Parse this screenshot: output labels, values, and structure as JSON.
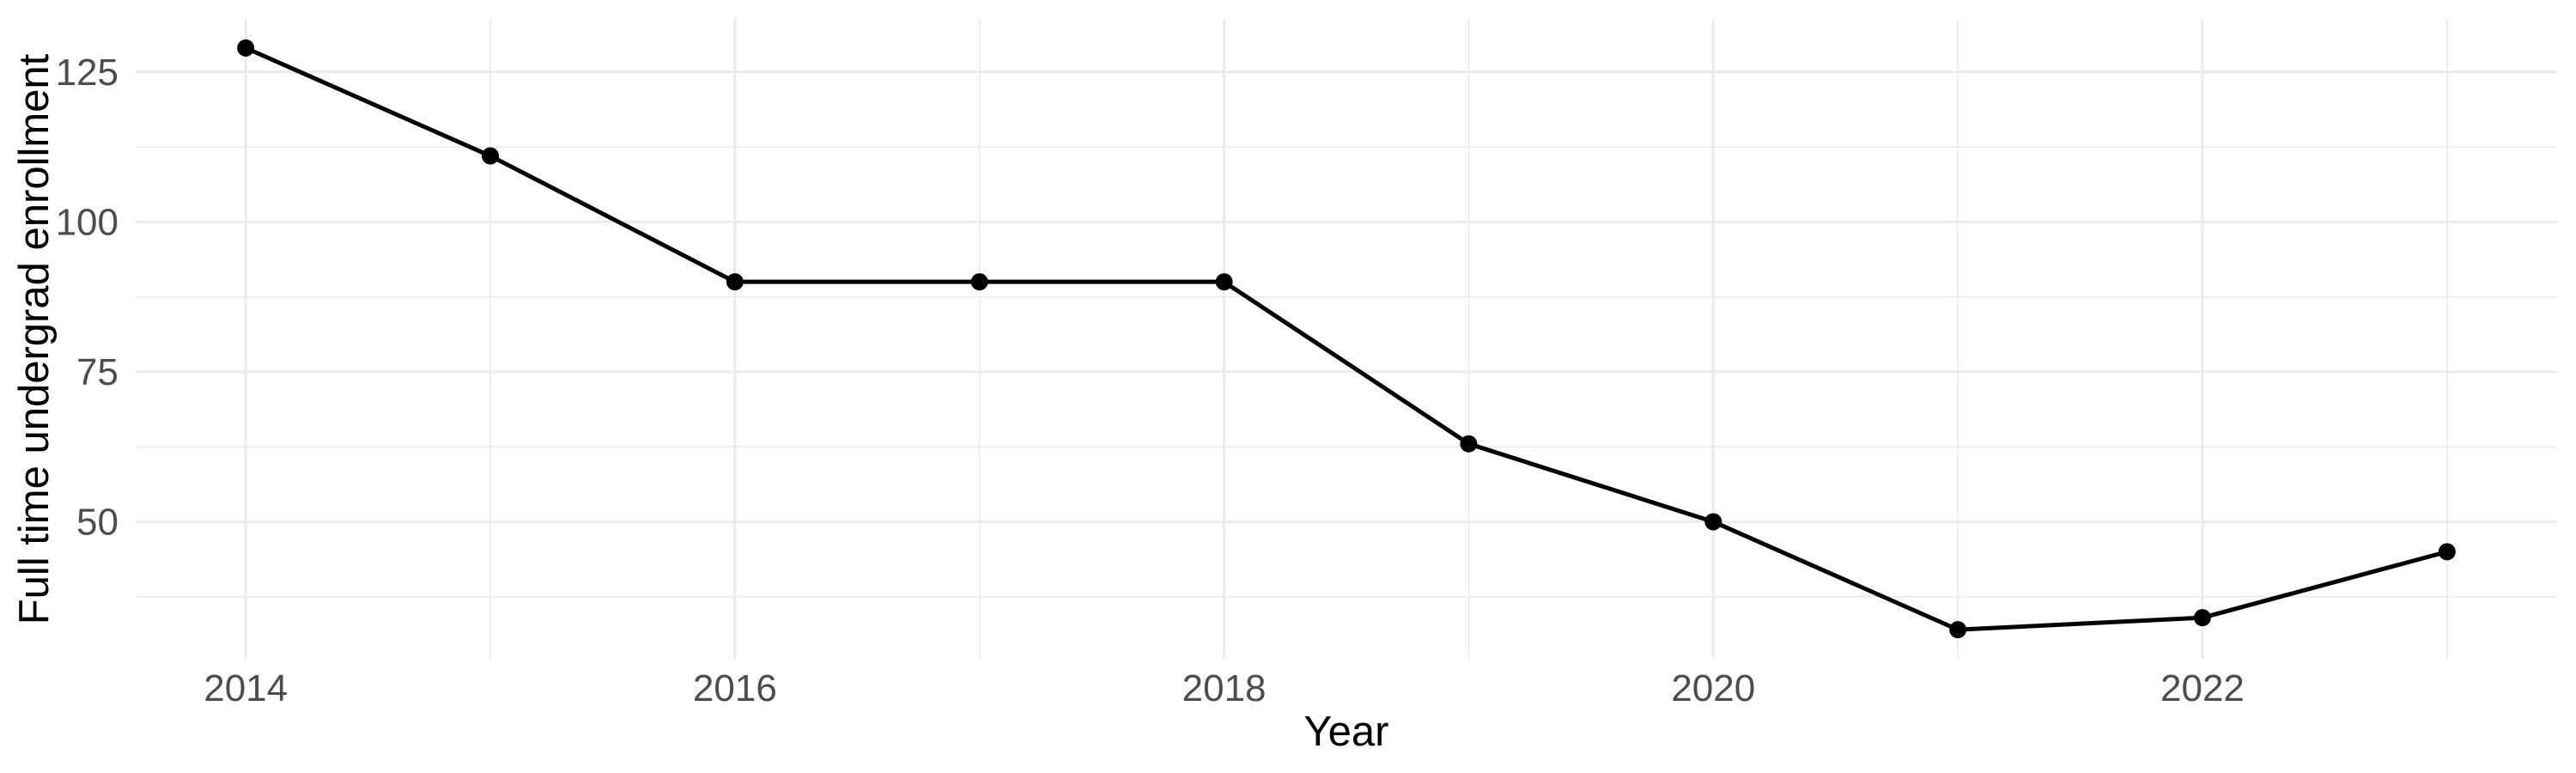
{
  "figure": {
    "background": "#FFFFFF"
  },
  "chart_data": {
    "type": "line",
    "title": "",
    "xlabel": "Year",
    "ylabel": "Full time undergrad enrollment",
    "x": [
      2014,
      2015,
      2016,
      2017,
      2018,
      2019,
      2020,
      2021,
      2022,
      2023
    ],
    "values": [
      129,
      111,
      90,
      90,
      90,
      63,
      50,
      32,
      34,
      45
    ],
    "series": [
      {
        "name": "Full time undergrad enrollment",
        "values": [
          129,
          111,
          90,
          90,
          90,
          63,
          50,
          32,
          34,
          45
        ]
      }
    ],
    "x_major_ticks": [
      2014,
      2016,
      2018,
      2020,
      2022
    ],
    "x_tick_labels": [
      "2014",
      "2016",
      "2018",
      "2020",
      "2022"
    ],
    "x_minor_ticks": [
      2015,
      2017,
      2019,
      2021,
      2023
    ],
    "y_major_ticks": [
      50,
      75,
      100,
      125
    ],
    "y_tick_labels": [
      "50",
      "75",
      "100",
      "125"
    ],
    "y_minor_ticks": [
      37.5,
      62.5,
      87.5,
      112.5
    ],
    "xlim": [
      2013.55,
      2023.45
    ],
    "ylim": [
      27.15,
      133.85
    ],
    "grid": "major-and-minor",
    "legend": "none",
    "marker": "filled-circle",
    "colors": {
      "line": "#000000",
      "point": "#000000",
      "grid": "#EBEBEB",
      "tick_label": "#4D4D4D",
      "axis_title": "#000000",
      "background": "#FFFFFF"
    }
  }
}
